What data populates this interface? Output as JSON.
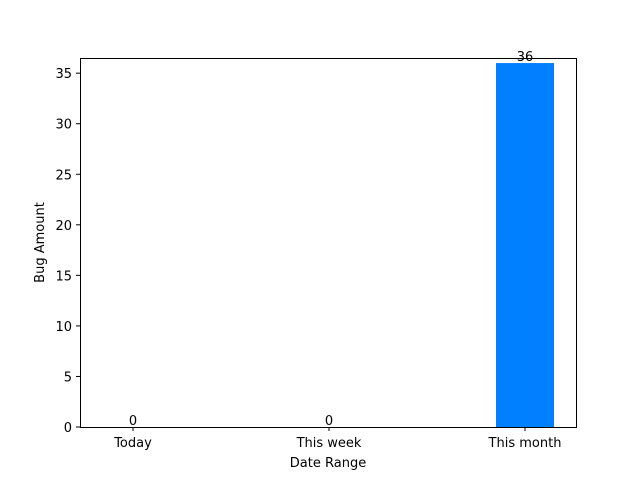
{
  "chart_data": {
    "type": "bar",
    "title": "",
    "xlabel": "Date Range",
    "ylabel": "Bug Amount",
    "categories": [
      "Today",
      "This week",
      "This month"
    ],
    "values": [
      0,
      0,
      36
    ],
    "data_labels": [
      "0",
      "0",
      "36"
    ],
    "ylim": [
      0,
      36.5
    ],
    "yticks": [
      0,
      5,
      10,
      15,
      20,
      25,
      30,
      35
    ],
    "ytick_labels": [
      "0",
      "5",
      "10",
      "15",
      "20",
      "25",
      "30",
      "35"
    ],
    "grid": false,
    "legend": "none",
    "bar_color": "#007fff"
  }
}
